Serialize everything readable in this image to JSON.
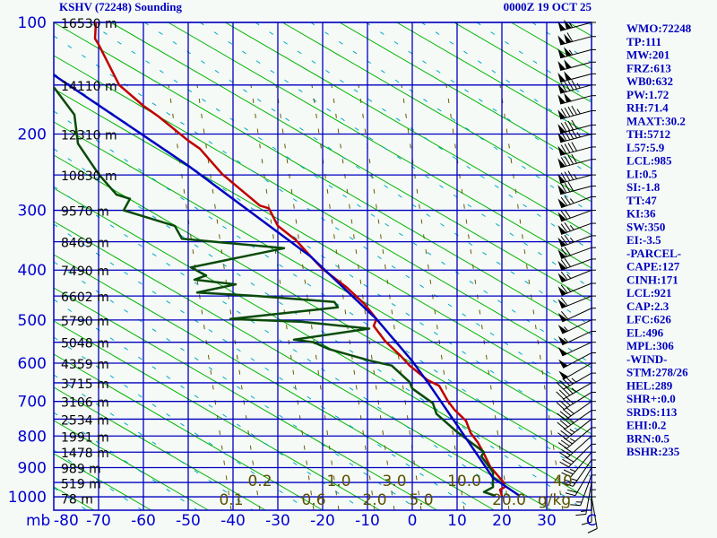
{
  "chart_data": {
    "type": "line",
    "title": "KSHV (72248) Sounding",
    "subtitle": "0000Z 19 OCT 25",
    "xlabel": "C",
    "ylabel": "mb",
    "xlim": [
      -80,
      40
    ],
    "ylim": [
      1050,
      100
    ],
    "grid": true,
    "pressure_ticks": [
      100,
      200,
      300,
      400,
      500,
      600,
      700,
      800,
      900,
      1000
    ],
    "pressure_tick_labels": [
      "100",
      "200",
      "300",
      "400",
      "500",
      "600",
      "700",
      "800",
      "900",
      "1000"
    ],
    "temp_ticks": [
      -80,
      -70,
      -60,
      -50,
      -40,
      -30,
      -20,
      -10,
      0,
      10,
      20,
      30
    ],
    "temp_tick_labels": [
      "-80",
      "-70",
      "-60",
      "-50",
      "-40",
      "-30",
      "-20",
      "-10",
      "0",
      "10",
      "20",
      "30"
    ],
    "temp_unit_label": "C",
    "mixing_ratio_labels": [
      "0.1",
      "0.2",
      "0.6",
      "1.0",
      "2.0",
      "3.0",
      "5.0",
      "10.0",
      "20.0",
      "40"
    ],
    "mixing_ratio_unit": "g/kg",
    "heights": [
      {
        "p": 100,
        "label": "16530 m"
      },
      {
        "p": 150,
        "label": "14110 m"
      },
      {
        "p": 200,
        "label": "12310 m"
      },
      {
        "p": 250,
        "label": "10830 m"
      },
      {
        "p": 300,
        "label": "9570 m"
      },
      {
        "p": 350,
        "label": "8469 m"
      },
      {
        "p": 400,
        "label": "7490 m"
      },
      {
        "p": 450,
        "label": "6602 m"
      },
      {
        "p": 500,
        "label": "5790 m"
      },
      {
        "p": 550,
        "label": "5048 m"
      },
      {
        "p": 600,
        "label": "4359 m"
      },
      {
        "p": 650,
        "label": "3715 m"
      },
      {
        "p": 700,
        "label": "3106 m"
      },
      {
        "p": 750,
        "label": "2534 m"
      },
      {
        "p": 800,
        "label": "1991 m"
      },
      {
        "p": 850,
        "label": "1478 m"
      },
      {
        "p": 900,
        "label": "989 m"
      },
      {
        "p": 950,
        "label": "519 m"
      },
      {
        "p": 1000,
        "label": "78 m"
      }
    ],
    "series": [
      {
        "name": "Temperature",
        "color": "#c00000",
        "points": [
          [
            100,
            -70.6
          ],
          [
            111.5,
            -70.8
          ],
          [
            116,
            -70
          ],
          [
            150,
            -65.4
          ],
          [
            170,
            -60
          ],
          [
            181,
            -56.6
          ],
          [
            207.5,
            -50
          ],
          [
            217,
            -47.4
          ],
          [
            249,
            -42.4
          ],
          [
            293,
            -34
          ],
          [
            297,
            -32
          ],
          [
            324,
            -30
          ],
          [
            347,
            -26
          ],
          [
            376,
            -22.6
          ],
          [
            398,
            -20
          ],
          [
            433,
            -14.6
          ],
          [
            467,
            -10.6
          ],
          [
            498,
            -8
          ],
          [
            513,
            -8.6
          ],
          [
            548,
            -6
          ],
          [
            582,
            -2.6
          ],
          [
            606,
            -0.6
          ],
          [
            643,
            3.4
          ],
          [
            658,
            6
          ],
          [
            700,
            8
          ],
          [
            723,
            9.4
          ],
          [
            755,
            12
          ],
          [
            790,
            13
          ],
          [
            819,
            14.6
          ],
          [
            855,
            16
          ],
          [
            897,
            17.4
          ],
          [
            950,
            20.4
          ],
          [
            966,
            20.6
          ],
          [
            975,
            19.6
          ],
          [
            997,
            20
          ]
        ]
      },
      {
        "name": "Dewpoint",
        "color": "#0a4a0a",
        "points": [
          [
            152,
            -80
          ],
          [
            179,
            -75.4
          ],
          [
            211,
            -74.6
          ],
          [
            249,
            -70
          ],
          [
            277,
            -66
          ],
          [
            283,
            -63
          ],
          [
            300,
            -64.4
          ],
          [
            324,
            -53
          ],
          [
            345,
            -51.4
          ],
          [
            361,
            -28.6
          ],
          [
            395,
            -49.4
          ],
          [
            410,
            -46
          ],
          [
            418,
            -48.6
          ],
          [
            427,
            -39.4
          ],
          [
            443,
            -48
          ],
          [
            450,
            -34.6
          ],
          [
            462,
            -17.4
          ],
          [
            473,
            -16.6
          ],
          [
            498,
            -40.6
          ],
          [
            504,
            -24.6
          ],
          [
            519,
            -9.6
          ],
          [
            544,
            -26.4
          ],
          [
            550,
            -22
          ],
          [
            566,
            -18.6
          ],
          [
            594,
            -9.4
          ],
          [
            606,
            -4.6
          ],
          [
            648,
            -0.6
          ],
          [
            665,
            0
          ],
          [
            705,
            4.6
          ],
          [
            735,
            5.4
          ],
          [
            788,
            10
          ],
          [
            850,
            16
          ],
          [
            863,
            15.4
          ],
          [
            915,
            18
          ],
          [
            966,
            18
          ],
          [
            983,
            16
          ],
          [
            997,
            18.6
          ]
        ]
      },
      {
        "name": "Parcel",
        "color": "#0000c0",
        "points": [
          [
            141,
            -80
          ],
          [
            238,
            -50
          ],
          [
            376,
            -22.6
          ],
          [
            498,
            -8
          ],
          [
            595,
            0
          ],
          [
            658,
            4
          ],
          [
            819,
            12.6
          ],
          [
            934,
            18
          ],
          [
            997,
            24
          ]
        ]
      }
    ],
    "wind": [
      [
        100,
        255,
        105
      ],
      [
        110,
        255,
        110
      ],
      [
        120,
        255,
        105
      ],
      [
        130,
        255,
        100
      ],
      [
        140,
        255,
        100
      ],
      [
        150,
        255,
        95
      ],
      [
        160,
        255,
        100
      ],
      [
        175,
        255,
        95
      ],
      [
        190,
        255,
        90
      ],
      [
        200,
        255,
        95
      ],
      [
        215,
        255,
        90
      ],
      [
        230,
        255,
        90
      ],
      [
        250,
        255,
        85
      ],
      [
        265,
        255,
        80
      ],
      [
        280,
        250,
        75
      ],
      [
        300,
        250,
        70
      ],
      [
        320,
        250,
        75
      ],
      [
        340,
        250,
        75
      ],
      [
        360,
        250,
        70
      ],
      [
        380,
        250,
        70
      ],
      [
        400,
        248,
        65
      ],
      [
        425,
        248,
        65
      ],
      [
        450,
        248,
        60
      ],
      [
        475,
        245,
        60
      ],
      [
        500,
        245,
        55
      ],
      [
        525,
        245,
        55
      ],
      [
        550,
        245,
        50
      ],
      [
        575,
        242,
        50
      ],
      [
        600,
        240,
        50
      ],
      [
        625,
        240,
        45
      ],
      [
        650,
        240,
        45
      ],
      [
        675,
        238,
        40
      ],
      [
        700,
        235,
        40
      ],
      [
        725,
        235,
        40
      ],
      [
        750,
        232,
        35
      ],
      [
        775,
        230,
        35
      ],
      [
        800,
        228,
        30
      ],
      [
        825,
        225,
        30
      ],
      [
        850,
        220,
        25
      ],
      [
        875,
        215,
        25
      ],
      [
        900,
        210,
        20
      ],
      [
        925,
        200,
        15
      ],
      [
        950,
        190,
        15
      ],
      [
        975,
        180,
        10
      ],
      [
        1000,
        170,
        10
      ]
    ]
  },
  "indices": [
    "WMO:72248",
    "TP:111",
    "MW:201",
    "FRZ:613",
    "WB0:632",
    "PW:1.72",
    "RH:71.4",
    "MAXT:30.2",
    "TH:5712",
    "L57:5.9",
    "LCL:985",
    "LI:0.5",
    "SI:-1.8",
    "TT:47",
    "KI:36",
    "SW:350",
    "EI:-3.5",
    "-PARCEL-",
    "CAPE:127",
    "CINH:171",
    "LCL:921",
    "CAP:2.3",
    "LFC:626",
    "EL:496",
    "MPL:306",
    "-WIND-",
    "STM:278/26",
    "HEL:289",
    "SHR+:0.0",
    "SRDS:113",
    "EHI:0.2",
    "BRN:0.5",
    "BSHR:235"
  ],
  "colors": {
    "grid": "#0000c0",
    "dry_adiabat": "#00b400",
    "moist_adiabat": "#00a8c8",
    "mixing_ratio": "#6b5a00",
    "background": "#f5faf6"
  }
}
